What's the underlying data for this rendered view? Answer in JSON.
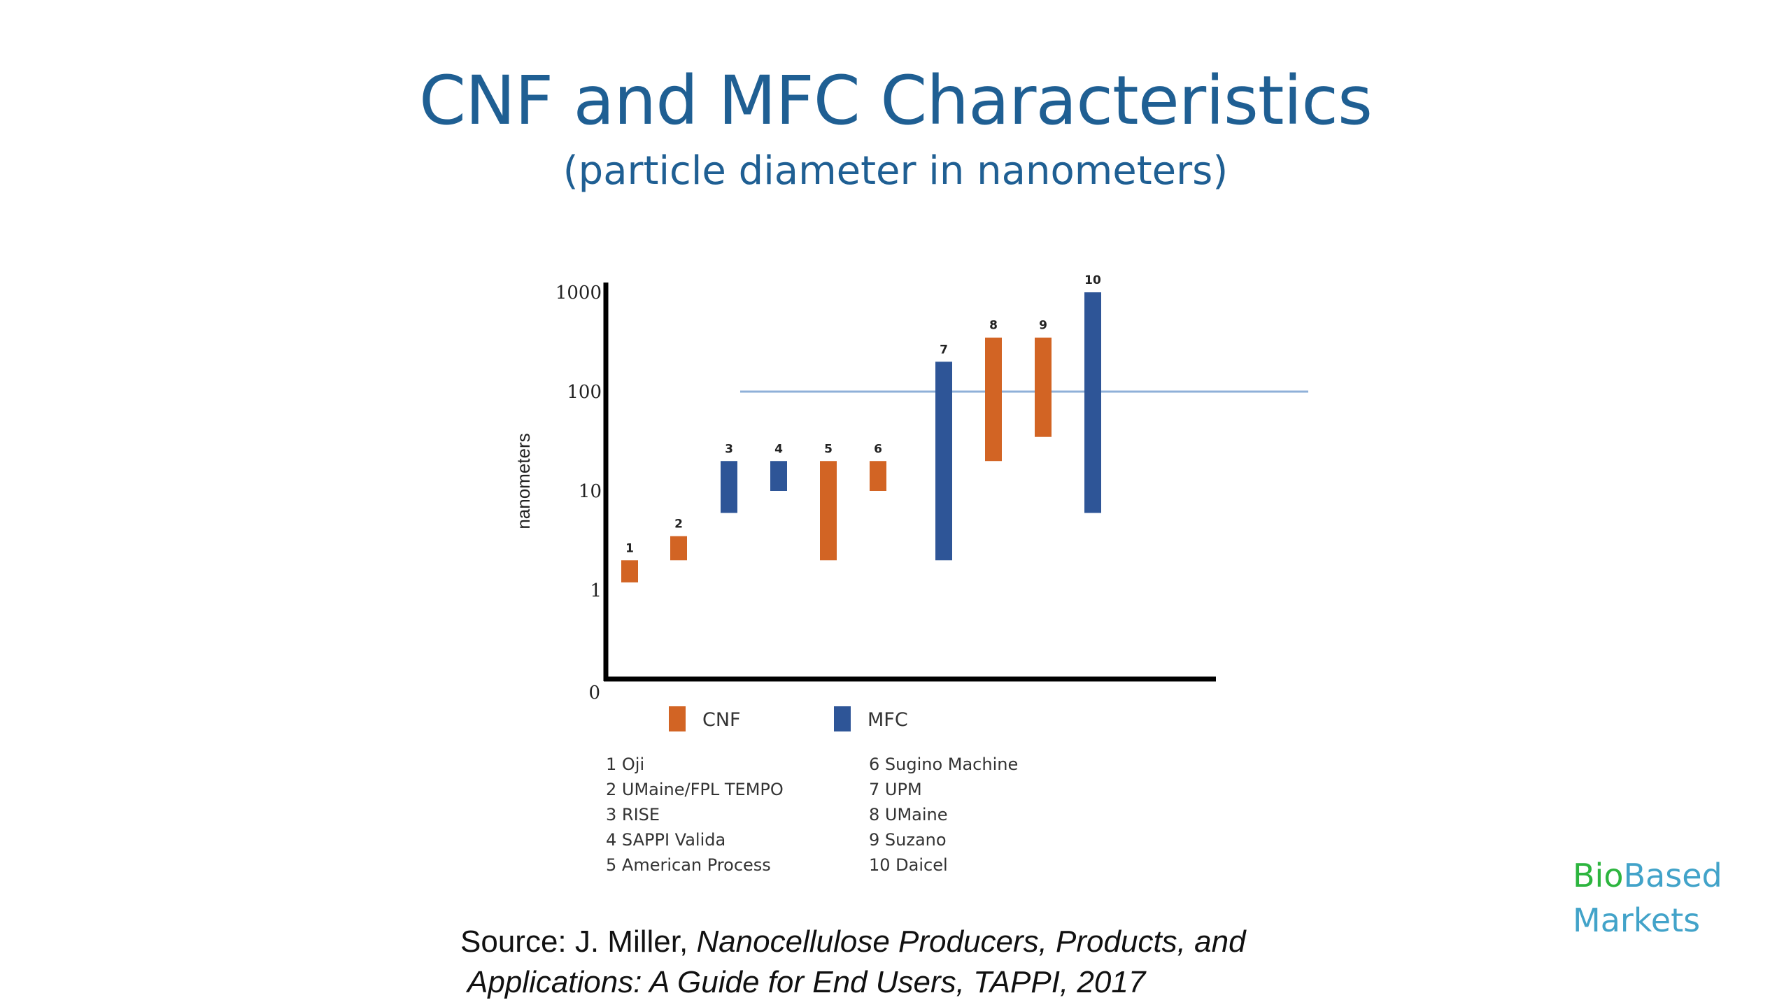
{
  "slide": {
    "title": "CNF and MFC Characteristics",
    "subtitle": "(particle diameter in nanometers)"
  },
  "chart_data": {
    "type": "floating-bar",
    "ylabel": "nanometers",
    "y_scale": "log",
    "y_ticks": [
      "1000",
      "100",
      "10",
      "1",
      "0"
    ],
    "reference_line": 100,
    "legend": [
      {
        "name": "CNF",
        "color": "#d26424"
      },
      {
        "name": "MFC",
        "color": "#2e5597"
      }
    ],
    "bars": [
      {
        "label": "1",
        "type": "CNF",
        "low": 1.2,
        "high": 2
      },
      {
        "label": "2",
        "type": "CNF",
        "low": 2,
        "high": 3.5
      },
      {
        "label": "3",
        "type": "MFC",
        "low": 6,
        "high": 20
      },
      {
        "label": "4",
        "type": "MFC",
        "low": 10,
        "high": 20
      },
      {
        "label": "5",
        "type": "CNF",
        "low": 2,
        "high": 20
      },
      {
        "label": "6",
        "type": "CNF",
        "low": 10,
        "high": 20
      },
      {
        "label": "7",
        "type": "MFC",
        "low": 2,
        "high": 200
      },
      {
        "label": "8",
        "type": "CNF",
        "low": 20,
        "high": 350
      },
      {
        "label": "9",
        "type": "CNF",
        "low": 35,
        "high": 350
      },
      {
        "label": "10",
        "type": "MFC",
        "low": 6,
        "high": 1000
      }
    ]
  },
  "producers": {
    "col1": [
      "1 Oji",
      "2 UMaine/FPL TEMPO",
      "3 RISE",
      "4  SAPPI Valida",
      "5 American Process"
    ],
    "col2": [
      "6 Sugino Machine",
      "7 UPM",
      "8 UMaine",
      "9 Suzano",
      "10 Daicel"
    ]
  },
  "source": {
    "prefix": "Source: J. Miller, ",
    "title_part1": "Nanocellulose Producers, Products, and",
    "title_part2": "Applications: A Guide for End Users, TAPPI, 2017"
  },
  "brand": {
    "bio": "Bio",
    "based": "Based",
    "markets": "Markets"
  }
}
